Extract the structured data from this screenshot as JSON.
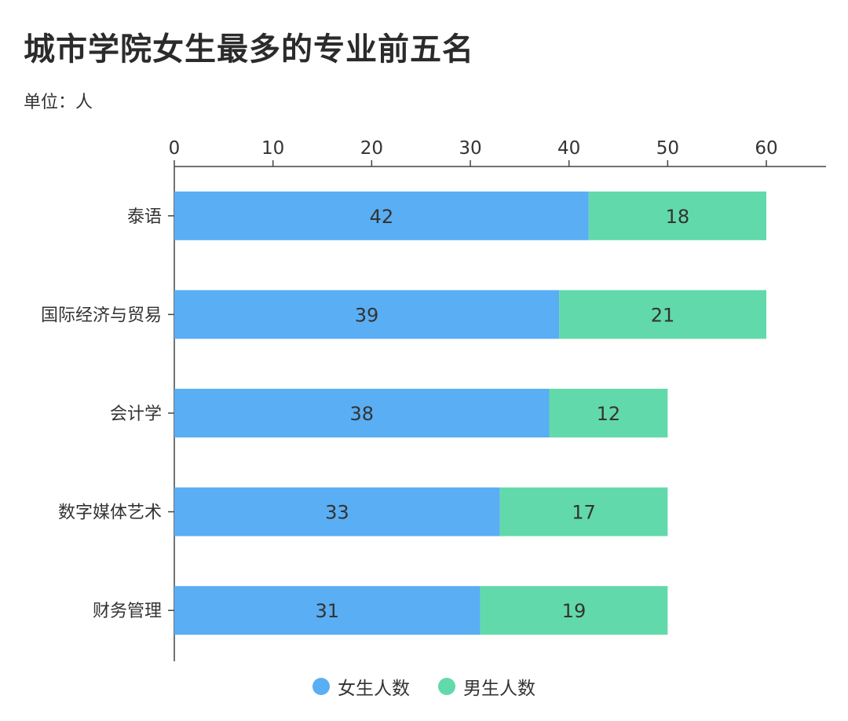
{
  "title": "城市学院女生最多的专业前五名",
  "subtitle": "单位：人",
  "colors": {
    "female": "#5aaef3",
    "male": "#62d9ab",
    "axis": "#444444",
    "text": "#333333"
  },
  "chart_data": {
    "type": "bar",
    "orientation": "horizontal",
    "stacked": true,
    "categories": [
      "泰语",
      "国际经济与贸易",
      "会计学",
      "数字媒体艺术",
      "财务管理"
    ],
    "series": [
      {
        "name": "女生人数",
        "color": "#5aaef3",
        "values": [
          42,
          39,
          38,
          33,
          31
        ]
      },
      {
        "name": "男生人数",
        "color": "#62d9ab",
        "values": [
          18,
          21,
          12,
          17,
          19
        ]
      }
    ],
    "xlim": [
      0,
      60
    ],
    "xticks": [
      0,
      10,
      20,
      30,
      40,
      50,
      60
    ],
    "x_axis_position": "top",
    "grid": false,
    "data_labels": true,
    "legend_position": "bottom-center"
  }
}
